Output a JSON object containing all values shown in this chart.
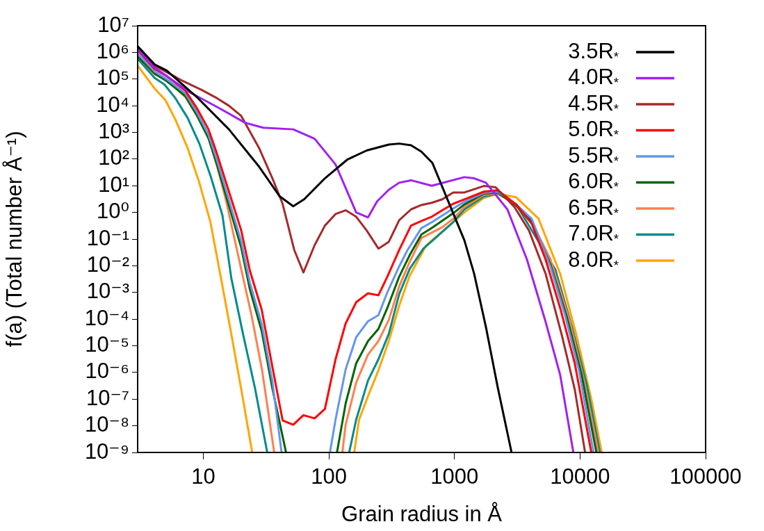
{
  "chart_data": {
    "type": "line",
    "xlabel": "Grain radius in Å",
    "ylabel": "f(a) (Total number Å⁻¹)",
    "log": "xy",
    "grid": false,
    "legend": "top right",
    "xlim": [
      3,
      100000
    ],
    "xticks": [
      10,
      100,
      1000,
      10000,
      100000
    ],
    "ylim": [
      1e-09,
      10000000.0
    ],
    "yticks": [
      {
        "value": 1e-09,
        "label": "10⁻⁹"
      },
      {
        "value": 1e-08,
        "label": "10⁻⁸"
      },
      {
        "value": 1e-07,
        "label": "10⁻⁷"
      },
      {
        "value": 1e-06,
        "label": "10⁻⁶"
      },
      {
        "value": 1e-05,
        "label": "10⁻⁵"
      },
      {
        "value": 0.0001,
        "label": "10⁻⁴"
      },
      {
        "value": 0.001,
        "label": "10⁻³"
      },
      {
        "value": 0.01,
        "label": "10⁻²"
      },
      {
        "value": 0.1,
        "label": "10⁻¹"
      },
      {
        "value": 1,
        "label": "10⁰"
      },
      {
        "value": 10,
        "label": "10¹"
      },
      {
        "value": 100,
        "label": "10²"
      },
      {
        "value": 1000,
        "label": "10³"
      },
      {
        "value": 10000,
        "label": "10⁴"
      },
      {
        "value": 100000,
        "label": "10⁵"
      },
      {
        "value": 1000000,
        "label": "10⁶"
      },
      {
        "value": 10000000,
        "label": "10⁷"
      }
    ],
    "series": [
      {
        "name": "3.5R$_{*}$",
        "color": "#000000",
        "x": [
          3,
          4.1,
          5.1,
          8.9,
          16,
          27.8,
          40.6,
          52,
          63.5,
          93,
          140,
          200,
          300,
          363,
          451,
          546,
          668,
          1200,
          1435,
          1780,
          2210,
          2850
        ],
        "values": [
          1700000.0,
          350000.0,
          210000.0,
          21000.0,
          1300,
          52,
          4,
          1.7,
          3.1,
          19,
          95,
          210,
          350,
          380,
          330,
          190,
          71,
          0.089,
          0.005,
          5.1e-05,
          2.8e-07,
          1e-09
        ]
      },
      {
        "name": "4.0R$_{*}$",
        "color": "#a020f0",
        "x": [
          3,
          4.1,
          7.8,
          13.6,
          21.5,
          30,
          52,
          77,
          113,
          165,
          205,
          242,
          300,
          363,
          451,
          660,
          1200,
          1435,
          1780,
          2640,
          3780,
          5320,
          6950,
          8850
        ],
        "values": [
          1300000.0,
          270000.0,
          32000.0,
          7800,
          2300,
          1500,
          1300,
          580,
          63,
          1.0,
          0.65,
          2.6,
          7.1,
          13,
          16,
          10,
          21,
          19,
          13,
          1.3,
          0.017,
          7.9e-05,
          8.1e-07,
          1e-09
        ]
      },
      {
        "name": "4.5R$_{*}$",
        "color": "#a52a2a",
        "x": [
          3,
          4.1,
          6.85,
          9.7,
          12.9,
          16,
          20,
          27.8,
          35.5,
          42.8,
          53,
          62.7,
          77,
          93,
          113,
          136,
          165,
          200,
          248,
          300,
          363,
          451,
          546,
          660,
          800,
          977,
          1200,
          1714,
          2130,
          3000,
          3920,
          5320,
          7210,
          9080,
          10970
        ],
        "values": [
          1400000.0,
          320000.0,
          85000.0,
          39000.0,
          19000.0,
          10000.0,
          4200,
          260,
          19,
          2.1,
          0.039,
          0.0056,
          0.059,
          0.32,
          0.87,
          1.2,
          0.69,
          0.21,
          0.044,
          0.079,
          0.51,
          1.3,
          1.9,
          2.3,
          3.1,
          5.6,
          5.6,
          9.8,
          8.7,
          1.6,
          0.21,
          0.005,
          2.2e-05,
          2.3e-07,
          1e-09
        ]
      },
      {
        "name": "5.0R$_{*}$",
        "color": "#ff0000",
        "x": [
          3,
          4.1,
          5.1,
          7.2,
          8.9,
          11,
          12.9,
          16,
          20,
          23.5,
          29.2,
          35.5,
          42.8,
          52,
          62.7,
          77,
          93,
          113,
          136,
          165,
          205,
          248,
          292,
          363,
          451,
          546,
          660,
          800,
          977,
          1200,
          1714,
          2210,
          3100,
          4120,
          5320,
          6950,
          9080,
          12300
        ],
        "values": [
          1200000.0,
          240000.0,
          130000.0,
          37000.0,
          8000,
          1300,
          150,
          6.0,
          0.22,
          0.0065,
          0.00022,
          1.6e-06,
          1.6e-08,
          1.1e-08,
          2.5e-08,
          1.9e-08,
          4.3e-08,
          3.1e-06,
          6.9e-05,
          0.00043,
          0.00093,
          0.00078,
          0.0039,
          0.039,
          0.32,
          0.48,
          0.69,
          1.2,
          2.1,
          3.1,
          6.0,
          6.8,
          2.0,
          0.38,
          0.017,
          0.00026,
          2.2e-06,
          1e-09
        ]
      },
      {
        "name": "5.5R$_{*}$",
        "color": "#6495ed",
        "x": [
          3,
          4.1,
          5.1,
          7.2,
          8.9,
          11,
          12.9,
          16,
          20,
          23.5,
          29.2,
          35.5,
          42,
          70,
          102,
          113,
          136,
          165,
          205,
          248,
          292,
          363,
          423,
          546,
          660,
          977,
          1200,
          1714,
          2210,
          3100,
          4120,
          5820,
          7600,
          9800,
          12800
        ],
        "values": [
          900000.0,
          190000.0,
          100000.0,
          29000.0,
          5600,
          820,
          85,
          2.9,
          0.085,
          0.0023,
          6.5e-05,
          4.6e-07,
          1e-09,
          null,
          1e-09,
          1.7e-08,
          1.3e-06,
          2.1e-05,
          8.3e-05,
          0.00014,
          0.001,
          0.0095,
          0.039,
          0.26,
          0.43,
          1.4,
          2.5,
          5.4,
          6.0,
          2.0,
          0.58,
          0.0091,
          0.00014,
          1.2e-06,
          1e-09
        ]
      },
      {
        "name": "6.0R$_{*}$",
        "color": "#006400",
        "x": [
          3,
          4.1,
          5.1,
          7.2,
          8.9,
          11,
          12.9,
          16,
          20,
          23.5,
          29.2,
          35.5,
          42.8,
          45.6,
          70,
          116,
          136,
          165,
          205,
          248,
          292,
          363,
          440,
          546,
          660,
          977,
          1200,
          1714,
          2210,
          3100,
          4120,
          5820,
          7890,
          10300,
          13500
        ],
        "values": [
          700000.0,
          160000.0,
          85000.0,
          23000.0,
          4300,
          600,
          58,
          1.8,
          0.05,
          0.0013,
          3.5e-05,
          2.5e-07,
          4e-09,
          1e-09,
          null,
          1e-09,
          6.9e-08,
          2.2e-06,
          1.5e-05,
          4.3e-05,
          0.00026,
          0.0039,
          0.025,
          0.15,
          0.26,
          0.93,
          2.0,
          5.0,
          5.6,
          1.8,
          0.46,
          0.011,
          0.00011,
          8.1e-07,
          1e-09
        ]
      },
      {
        "name": "6.5R$_{*}$",
        "color": "#ff7f50",
        "x": [
          3,
          4.1,
          5.1,
          7.2,
          8.9,
          11,
          12.9,
          15.1,
          20.2,
          24.2,
          29.4,
          36.7,
          70,
          128,
          136,
          165,
          205,
          248,
          300,
          363,
          440,
          546,
          800,
          977,
          1200,
          1714,
          2210,
          3100,
          4120,
          5820,
          8300,
          10700,
          14000
        ],
        "values": [
          690000.0,
          150000.0,
          95000.0,
          21000.0,
          4200,
          690,
          52,
          3.1,
          0.0063,
          0.00014,
          1.2e-06,
          1e-09,
          null,
          1e-09,
          1.1e-08,
          4.2e-07,
          4.7e-06,
          1.5e-05,
          9.3e-05,
          0.0017,
          0.014,
          0.11,
          0.28,
          0.58,
          1.6,
          4.5,
          5.2,
          2.0,
          0.46,
          0.017,
          7.9e-05,
          5.4e-07,
          1e-09
        ]
      },
      {
        "name": "7.0R$_{*}$",
        "color": "#008b8b",
        "x": [
          3,
          4.1,
          4.9,
          6.0,
          7.5,
          9.3,
          11.4,
          14.2,
          16.7,
          20.7,
          25.7,
          32.3,
          70,
          145,
          165,
          205,
          248,
          300,
          363,
          440,
          566,
          660,
          977,
          1200,
          1714,
          2210,
          3100,
          6370,
          8620,
          11300,
          14400
        ],
        "values": [
          580000.0,
          110000.0,
          63000.0,
          19000.0,
          3500,
          380,
          24,
          0.78,
          0.0035,
          2.8e-05,
          2.8e-07,
          1e-09,
          null,
          1e-09,
          1.7e-08,
          5e-07,
          3.1e-06,
          2.8e-05,
          0.00087,
          0.0076,
          0.044,
          0.083,
          0.43,
          1.3,
          4.0,
          5.0,
          2.0,
          0.0071,
          5.1e-05,
          3.5e-07,
          1e-09
        ]
      },
      {
        "name": "8.0R$_{*}$",
        "color": "#ffa500",
        "x": [
          3,
          4.1,
          5.0,
          6.0,
          7.5,
          9.3,
          11.4,
          13.6,
          16.7,
          20.7,
          24.5,
          70,
          159,
          174,
          205,
          248,
          300,
          363,
          440,
          596,
          1200,
          1714,
          2210,
          3100,
          4680,
          6950,
          9420,
          12300,
          14900
        ],
        "values": [
          320000.0,
          44000.0,
          16000.0,
          3000,
          260,
          13,
          0.43,
          0.0052,
          2.8e-05,
          1e-07,
          1e-09,
          null,
          1e-09,
          1.7e-08,
          1.3e-07,
          1.2e-06,
          1.5e-05,
          0.00032,
          0.0042,
          0.059,
          1.0,
          3.5,
          5.0,
          3.7,
          0.58,
          0.005,
          2.2e-05,
          1e-07,
          1e-09
        ]
      }
    ]
  }
}
